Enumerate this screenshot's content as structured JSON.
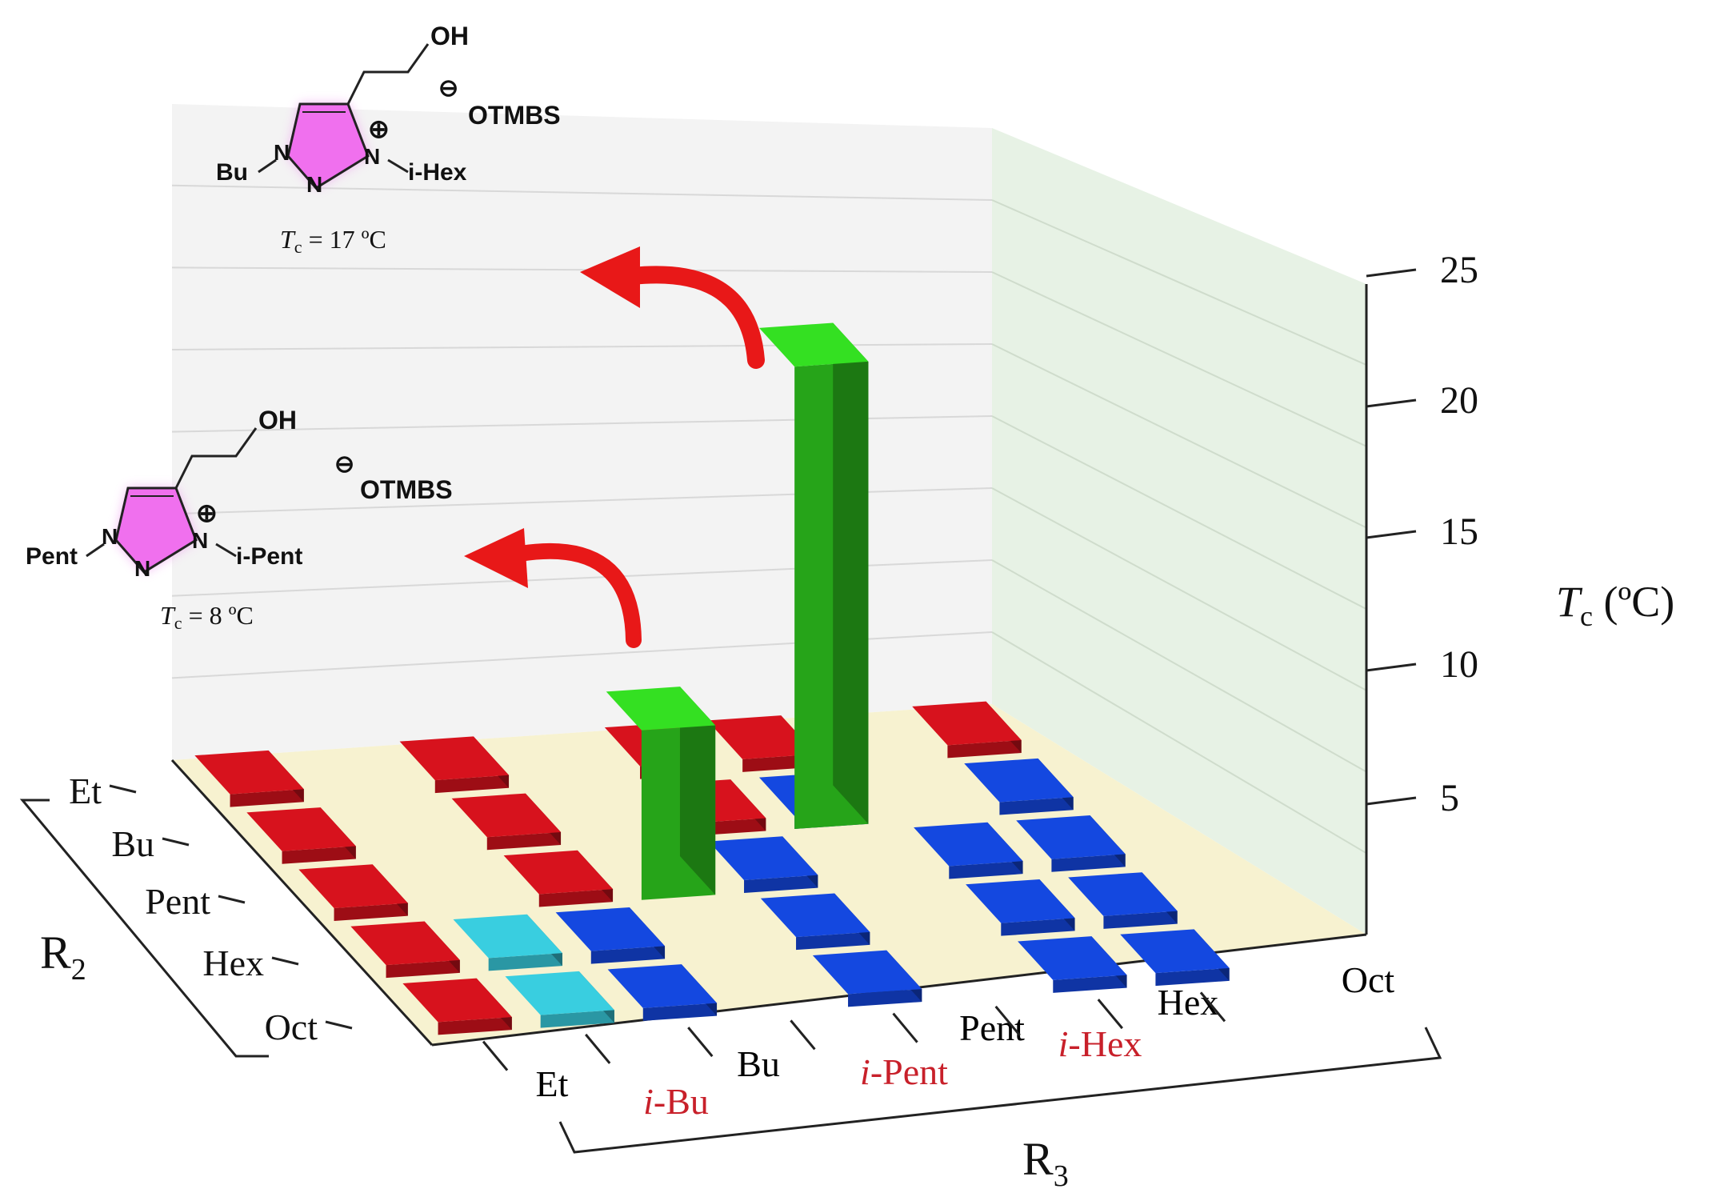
{
  "chart_data": {
    "type": "bar",
    "ylabel_base": "T",
    "ylabel_sub": "c",
    "ylabel_unit": " (ºC)",
    "z_ticks": [
      "5",
      "10",
      "15",
      "20",
      "25"
    ],
    "zlim": [
      5,
      25
    ],
    "r2_axis_label": "R",
    "r2_axis_sub": "2",
    "r3_axis_label": "R",
    "r3_axis_sub": "3",
    "r2_categories": [
      "Et",
      "Bu",
      "Pent",
      "Hex",
      "Oct"
    ],
    "r3_categories": [
      {
        "prefix": "",
        "label": "Et",
        "color": "#000000"
      },
      {
        "prefix": "i",
        "label": "-Bu",
        "color": "#c8202a"
      },
      {
        "prefix": "",
        "label": "Bu",
        "color": "#000000"
      },
      {
        "prefix": "i",
        "label": "-Pent",
        "color": "#c8202a"
      },
      {
        "prefix": "",
        "label": "Pent",
        "color": "#000000"
      },
      {
        "prefix": "i",
        "label": "-Hex",
        "color": "#c8202a"
      },
      {
        "prefix": "",
        "label": "Hex",
        "color": "#000000"
      },
      {
        "prefix": "",
        "label": "Oct",
        "color": "#000000"
      }
    ],
    "cells": [
      {
        "r2": 0,
        "r3": 0,
        "color": "#c0101a"
      },
      {
        "r2": 0,
        "r3": 2,
        "color": "#c0101a"
      },
      {
        "r2": 0,
        "r3": 4,
        "color": "#c0101a"
      },
      {
        "r2": 0,
        "r3": 5,
        "color": "#c0101a"
      },
      {
        "r2": 0,
        "r3": 7,
        "color": "#c0101a"
      },
      {
        "r2": 1,
        "r3": 0,
        "color": "#c0101a"
      },
      {
        "r2": 1,
        "r3": 2,
        "color": "#c0101a"
      },
      {
        "r2": 1,
        "r3": 4,
        "color": "#c0101a"
      },
      {
        "r2": 1,
        "r3": 5,
        "color": "#1240c8"
      },
      {
        "r2": 1,
        "r3": 7,
        "color": "#1240c8"
      },
      {
        "r2": 2,
        "r3": 0,
        "color": "#c0101a"
      },
      {
        "r2": 2,
        "r3": 2,
        "color": "#c0101a"
      },
      {
        "r2": 2,
        "r3": 4,
        "color": "#1240c8"
      },
      {
        "r2": 2,
        "r3": 6,
        "color": "#1240c8"
      },
      {
        "r2": 2,
        "r3": 7,
        "color": "#1240c8"
      },
      {
        "r2": 3,
        "r3": 0,
        "color": "#c0101a"
      },
      {
        "r2": 3,
        "r3": 1,
        "color": "#33b8c8"
      },
      {
        "r2": 3,
        "r3": 2,
        "color": "#1240c8"
      },
      {
        "r2": 3,
        "r3": 4,
        "color": "#1240c8"
      },
      {
        "r2": 3,
        "r3": 6,
        "color": "#1240c8"
      },
      {
        "r2": 3,
        "r3": 7,
        "color": "#1240c8"
      },
      {
        "r2": 4,
        "r3": 0,
        "color": "#c0101a"
      },
      {
        "r2": 4,
        "r3": 1,
        "color": "#33b8c8"
      },
      {
        "r2": 4,
        "r3": 2,
        "color": "#1240c8"
      },
      {
        "r2": 4,
        "r3": 4,
        "color": "#1240c8"
      },
      {
        "r2": 4,
        "r3": 6,
        "color": "#1240c8"
      },
      {
        "r2": 4,
        "r3": 7,
        "color": "#1240c8"
      }
    ],
    "bars": [
      {
        "r2": 2,
        "r3": 3,
        "value": 8,
        "color": "#2ec81e"
      },
      {
        "r2": 1,
        "r3": 5,
        "value": 17,
        "color": "#2ec81e"
      }
    ],
    "annotations": [
      {
        "n1_sub": "Bu",
        "n3_sub": "i-Hex",
        "anion": "OTMBS",
        "oh": "OH",
        "tc_base": "T",
        "tc_sub": "c",
        "tc_value": " = 17 ºC",
        "n_label": "N",
        "charge_plus": "⊕",
        "charge_minus": "⊖"
      },
      {
        "n1_sub": "Pent",
        "n3_sub": "i-Pent",
        "anion": "OTMBS",
        "oh": "OH",
        "tc_base": "T",
        "tc_sub": "c",
        "tc_value": " = 8 ºC",
        "n_label": "N",
        "charge_plus": "⊕",
        "charge_minus": "⊖"
      }
    ],
    "colors": {
      "floor": "#f7f2d0",
      "back_wall": "#f3f3f3",
      "side_wall": "#e7f2e5",
      "arrow": "#e81818",
      "ring_glow": "#f0a8f0",
      "ring_fill": "#f080f0"
    },
    "grid": true
  }
}
